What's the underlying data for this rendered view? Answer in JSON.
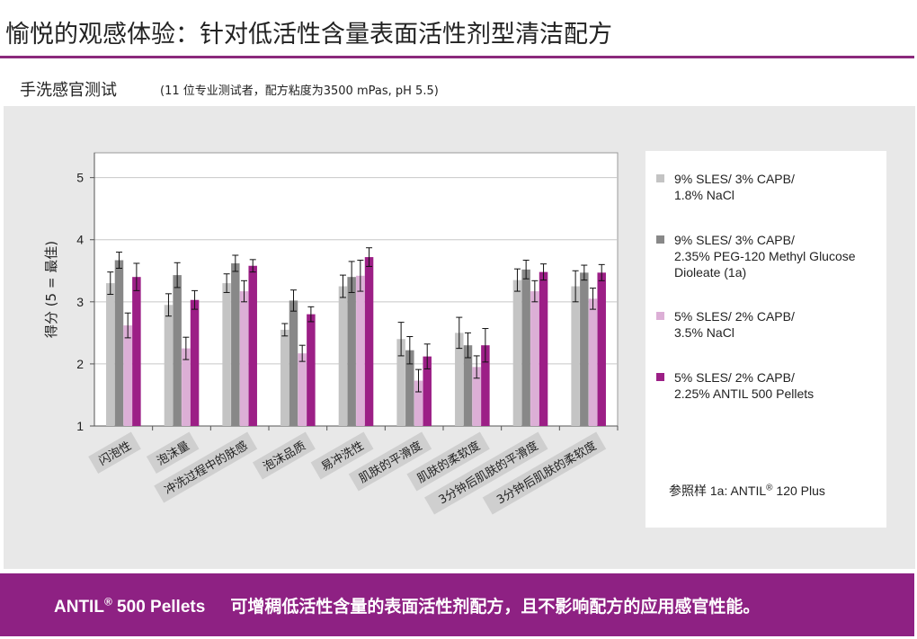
{
  "page": {
    "title": "愉悦的观感体验：针对低活性含量表面活性剂型清洁配方",
    "section_title": "手洗感官测试",
    "section_subtitle": "(11 位专业测试者，配方粘度为3500 mPas, pH 5.5)"
  },
  "legend_note": {
    "prefix": "参照样 1a: ANTIL",
    "sup": "®",
    "suffix": " 120 Plus"
  },
  "footer": {
    "brand": "ANTIL",
    "brand_sup": "®",
    "brand_suffix": " 500 Pellets",
    "message": "可增稠低活性含量的表面活性剂配方，且不影响配方的应用感官性能。"
  },
  "colors": {
    "accent": "#8b2a7c",
    "footer_bg": "#8e2183",
    "panel_bg": "#e8e8e8"
  },
  "chart_data": {
    "type": "bar",
    "ylabel": "得分 (5 = 最佳)",
    "ylim": [
      1,
      5.4
    ],
    "yticks": [
      1,
      2,
      3,
      4,
      5
    ],
    "grid": true,
    "legend_placement": "right",
    "categories": [
      "闪泡性",
      "泡沫量",
      "冲洗过程中的肤感",
      "泡沫品质",
      "易冲洗性",
      "肌肤的平滑度",
      "肌肤的柔软度",
      "3分钟后肌肤的平滑度",
      "3分钟后肌肤的柔软度"
    ],
    "series": [
      {
        "name": "9% SLES/ 3% CAPB/\n1.8% NaCl",
        "color": "#c4c4c4",
        "values": [
          3.3,
          2.95,
          3.3,
          2.55,
          3.25,
          2.4,
          2.5,
          3.35,
          3.25
        ],
        "errors": [
          0.18,
          0.18,
          0.15,
          0.1,
          0.18,
          0.27,
          0.25,
          0.18,
          0.25
        ]
      },
      {
        "name": "9% SLES/ 3% CAPB/\n2.35% PEG-120 Methyl Glucose\nDioleate (1a)",
        "color": "#888888",
        "values": [
          3.67,
          3.43,
          3.62,
          3.02,
          3.4,
          2.22,
          2.3,
          3.52,
          3.47
        ],
        "errors": [
          0.13,
          0.2,
          0.13,
          0.17,
          0.25,
          0.22,
          0.2,
          0.15,
          0.12
        ]
      },
      {
        "name": "5% SLES/ 2% CAPB/\n3.5% NaCl",
        "color": "#dcafd6",
        "values": [
          2.62,
          2.25,
          3.17,
          2.17,
          3.42,
          1.73,
          1.95,
          3.17,
          3.05
        ],
        "errors": [
          0.2,
          0.18,
          0.17,
          0.13,
          0.25,
          0.18,
          0.18,
          0.17,
          0.17
        ]
      },
      {
        "name": "5% SLES/ 2% CAPB/\n2.25% ANTIL 500 Pellets",
        "color": "#9c1f86",
        "values": [
          3.4,
          3.03,
          3.58,
          2.8,
          3.72,
          2.12,
          2.3,
          3.48,
          3.47
        ],
        "errors": [
          0.22,
          0.15,
          0.1,
          0.12,
          0.15,
          0.2,
          0.27,
          0.13,
          0.13
        ]
      }
    ]
  }
}
